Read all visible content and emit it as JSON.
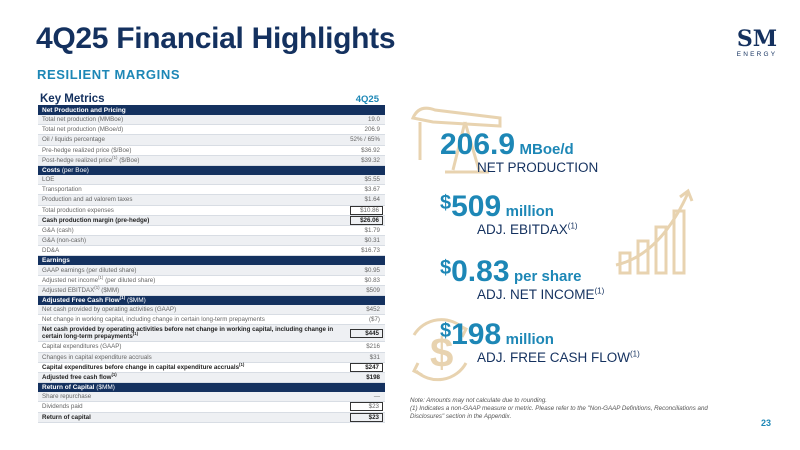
{
  "header": {
    "title": "4Q25 Financial Highlights",
    "subtitle": "RESILIENT MARGINS"
  },
  "logo": {
    "wordmark": "SM",
    "sub": "ENERGY"
  },
  "table": {
    "heading": "Key Metrics",
    "period": "4Q25",
    "sections": {
      "net_production": {
        "title": "Net Production and Pricing"
      },
      "costs": {
        "title": "Costs",
        "suffix": "(per Boe)"
      },
      "earnings": {
        "title": "Earnings"
      },
      "afcf": {
        "title": "Adjusted Free Cash Flow",
        "sup": "(1)",
        "suffix": "($MM)"
      },
      "roc": {
        "title": "Return of Capital",
        "suffix": "($MM)"
      }
    },
    "rows": {
      "total_net_prod_mmboe": {
        "label": "Total net production (MMBoe)",
        "value": "19.0"
      },
      "total_net_prod_mboed": {
        "label": "Total net production (MBoe/d)",
        "value": "206.9"
      },
      "oil_liquids_pct": {
        "label": "Oil / liquids percentage",
        "value": "52% / 65%"
      },
      "pre_hedge_price": {
        "label": "Pre-hedge realized price ($/Boe)",
        "value": "$36.92"
      },
      "post_hedge_price_a": {
        "label": "Post-hedge realized price",
        "sup": "(1)",
        "label_b": " ($/Boe)",
        "value": "$39.32"
      },
      "loe": {
        "label": "LOE",
        "value": "$5.55"
      },
      "transportation": {
        "label": "Transportation",
        "value": "$3.67"
      },
      "prod_taxes": {
        "label": "Production and ad valorem taxes",
        "value": "$1.64"
      },
      "total_prod_exp": {
        "label": "Total production expenses",
        "value": "$10.86"
      },
      "cash_margin": {
        "label": "Cash production margin (pre-hedge)",
        "value": "$26.06"
      },
      "ga_cash": {
        "label": "G&A (cash)",
        "value": "$1.79"
      },
      "ga_noncash": {
        "label": "G&A (non-cash)",
        "value": "$0.31"
      },
      "dda": {
        "label": "DD&A",
        "value": "$16.73"
      },
      "gaap_eps": {
        "label": "GAAP earnings (per diluted share)",
        "value": "$0.95"
      },
      "adj_net_income": {
        "label": "Adjusted net income",
        "sup": "(1)",
        "label_b": " (per diluted share)",
        "value": "$0.83"
      },
      "adj_ebitdax": {
        "label": "Adjusted EBITDAX",
        "sup": "(1)",
        "label_b": " ($MM)",
        "value": "$509"
      },
      "net_cash_ops": {
        "label": "Net cash provided by operating activities (GAAP)",
        "value": "$452"
      },
      "wc_change": {
        "label": "Net change in working capital, including change in certain long-term prepayments",
        "value": "($7)"
      },
      "ncfo_before_wc": {
        "label": "Net cash provided by operating activities before net change in working capital, including change in certain long-term prepayments",
        "sup": "(1)",
        "value": "$445"
      },
      "capex_gaap": {
        "label": "Capital expenditures (GAAP)",
        "value": "$216"
      },
      "capex_accruals": {
        "label": "Changes in capital expenditure accruals",
        "value": "$31"
      },
      "capex_before": {
        "label": "Capital expenditures before change in capital expenditure accruals",
        "sup": "(1)",
        "value": "$247"
      },
      "afcf_total": {
        "label": "Adjusted free cash flow",
        "sup": "(1)",
        "value": "$198"
      },
      "share_repurchase": {
        "label": "Share repurchase",
        "value": "—"
      },
      "dividends": {
        "label": "Dividends paid",
        "value": "$23"
      },
      "return_capital": {
        "label": "Return of capital",
        "value": "$23"
      }
    }
  },
  "metrics": {
    "production": {
      "value": "206.9",
      "unit": "MBoe/d",
      "label": "NET PRODUCTION"
    },
    "ebitdax": {
      "dollar": "$",
      "value": "509",
      "unit": "million",
      "label": "ADJ. EBITDAX",
      "sup": "(1)"
    },
    "net_income": {
      "dollar": "$",
      "value": "0.83",
      "unit": "per share",
      "label": "ADJ. NET INCOME",
      "sup": "(1)"
    },
    "fcf": {
      "dollar": "$",
      "value": "198",
      "unit": "million",
      "label": "ADJ. FREE CASH FLOW",
      "sup": "(1)"
    }
  },
  "notes": {
    "line1": "Note: Amounts may not calculate due to rounding.",
    "line2": "(1)  Indicates a non-GAAP measure or metric. Please refer to the \"Non-GAAP Definitions, Reconciliations and Disclosures\" section in the Appendix."
  },
  "page_number": "23",
  "colors": {
    "navy": "#14315f",
    "accent_blue": "#1d87b6",
    "icon_tan": "#e8d3b0"
  }
}
